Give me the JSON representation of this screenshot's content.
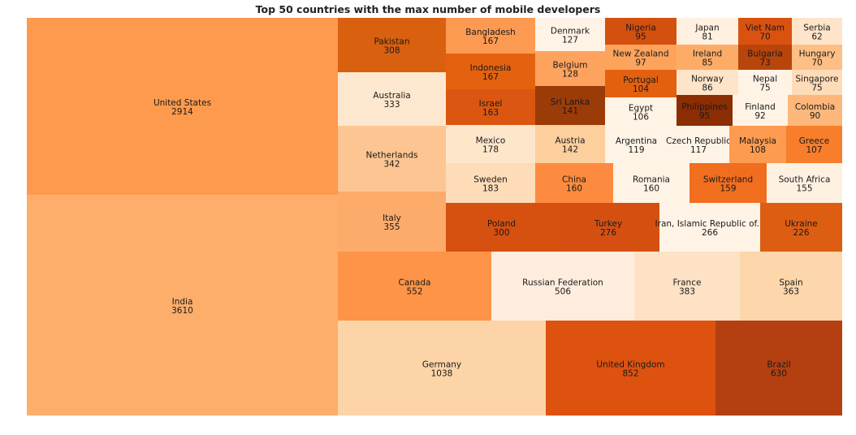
{
  "chart_data": {
    "type": "treemap",
    "title": "Top 50 countries with the max number of mobile developers",
    "items": [
      {
        "name": "India",
        "value": 3610,
        "color": "#fdae6b"
      },
      {
        "name": "United States",
        "value": 2914,
        "color": "#fd9a4e"
      },
      {
        "name": "Germany",
        "value": 1038,
        "color": "#fdd4a8"
      },
      {
        "name": "United Kingdom",
        "value": 852,
        "color": "#de520f"
      },
      {
        "name": "Brazil",
        "value": 630,
        "color": "#b44012"
      },
      {
        "name": "Canada",
        "value": 552,
        "color": "#fd9448"
      },
      {
        "name": "Russian Federation",
        "value": 506,
        "color": "#feedde"
      },
      {
        "name": "France",
        "value": 383,
        "color": "#fee2c6"
      },
      {
        "name": "Spain",
        "value": 363,
        "color": "#fdd6ab"
      },
      {
        "name": "Italy",
        "value": 355,
        "color": "#fdab6a"
      },
      {
        "name": "Netherlands",
        "value": 342,
        "color": "#fdc592"
      },
      {
        "name": "Australia",
        "value": 333,
        "color": "#fde7ce"
      },
      {
        "name": "Pakistan",
        "value": 308,
        "color": "#d9600f"
      },
      {
        "name": "Poland",
        "value": 300,
        "color": "#d65010"
      },
      {
        "name": "Turkey",
        "value": 276,
        "color": "#d55010"
      },
      {
        "name": "Iran, Islamic Republic of...",
        "value": 266,
        "color": "#fff3e6"
      },
      {
        "name": "Ukraine",
        "value": 226,
        "color": "#dd5d12"
      },
      {
        "name": "Sweden",
        "value": 183,
        "color": "#fedcb7"
      },
      {
        "name": "Mexico",
        "value": 178,
        "color": "#fee6cb"
      },
      {
        "name": "Bangladesh",
        "value": 167,
        "color": "#fd9a52"
      },
      {
        "name": "Indonesia",
        "value": 167,
        "color": "#e4620f"
      },
      {
        "name": "Israel",
        "value": 163,
        "color": "#db5610"
      },
      {
        "name": "China",
        "value": 160,
        "color": "#fd8b3f"
      },
      {
        "name": "Romania",
        "value": 160,
        "color": "#fff3e6"
      },
      {
        "name": "Switzerland",
        "value": 159,
        "color": "#f16e1f"
      },
      {
        "name": "South Africa",
        "value": 155,
        "color": "#fff1e2"
      },
      {
        "name": "Austria",
        "value": 142,
        "color": "#fdcf9d"
      },
      {
        "name": "Sri Lanka",
        "value": 141,
        "color": "#9b3b08"
      },
      {
        "name": "Belgium",
        "value": 128,
        "color": "#fda35e"
      },
      {
        "name": "Denmark",
        "value": 127,
        "color": "#fff3e6"
      },
      {
        "name": "Argentina",
        "value": 119,
        "color": "#fff3e6"
      },
      {
        "name": "Czech Republic",
        "value": 117,
        "color": "#fff3e6"
      },
      {
        "name": "Malaysia",
        "value": 108,
        "color": "#fd9b50"
      },
      {
        "name": "Greece",
        "value": 107,
        "color": "#f87e2c"
      },
      {
        "name": "Egypt",
        "value": 106,
        "color": "#fff3e6"
      },
      {
        "name": "Portugal",
        "value": 104,
        "color": "#e3600f"
      },
      {
        "name": "New Zealand",
        "value": 97,
        "color": "#fda35c"
      },
      {
        "name": "Nigeria",
        "value": 95,
        "color": "#d4500f"
      },
      {
        "name": "Philippines",
        "value": 95,
        "color": "#8c2d04"
      },
      {
        "name": "Finland",
        "value": 92,
        "color": "#fff3e6"
      },
      {
        "name": "Colombia",
        "value": 90,
        "color": "#fdb77a"
      },
      {
        "name": "Norway",
        "value": 86,
        "color": "#fee4c8"
      },
      {
        "name": "Ireland",
        "value": 85,
        "color": "#fdac67"
      },
      {
        "name": "Japan",
        "value": 81,
        "color": "#fff0e0"
      },
      {
        "name": "Nepal",
        "value": 75,
        "color": "#fff3e6"
      },
      {
        "name": "Singapore",
        "value": 75,
        "color": "#fedcb8"
      },
      {
        "name": "Bulgaria",
        "value": 73,
        "color": "#b8450c"
      },
      {
        "name": "Viet Nam",
        "value": 70,
        "color": "#d9520f"
      },
      {
        "name": "Hungary",
        "value": 70,
        "color": "#fdbf86"
      },
      {
        "name": "Serbia",
        "value": 62,
        "color": "#fee4c8"
      }
    ]
  }
}
